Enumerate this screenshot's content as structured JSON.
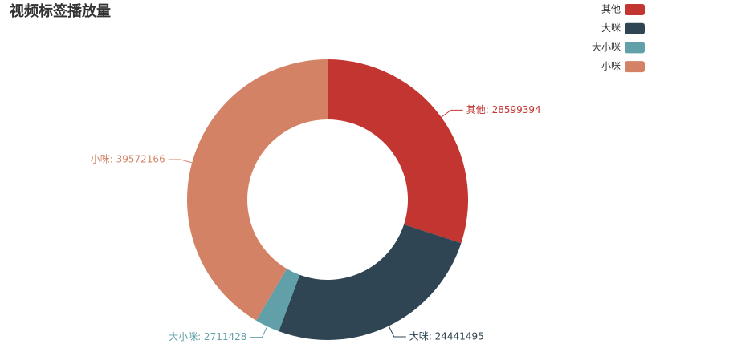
{
  "chart_data": {
    "type": "pie",
    "title": "视频标签播放量",
    "categories": [
      "其他",
      "大咪",
      "大小咪",
      "小咪"
    ],
    "values": [
      28599394,
      24441495,
      2711428,
      39572166
    ],
    "value_labels": [
      "其他: 28599394",
      "大咪: 24441495",
      "大小咪: 2711428",
      "小咪: 39572166"
    ],
    "colors": [
      "#c23531",
      "#2f4554",
      "#61a0a8",
      "#d48265"
    ],
    "donut": true,
    "legend": "top-right"
  }
}
